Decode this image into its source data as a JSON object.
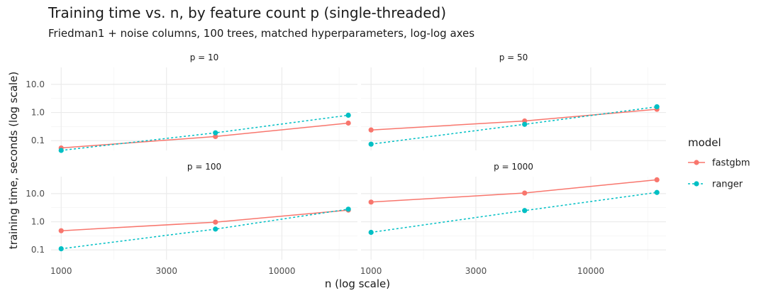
{
  "chart_data": {
    "type": "line",
    "title": "Training time vs. n, by feature count p (single-threaded)",
    "subtitle": "Friedman1 + noise columns, 100 trees, matched hyperparameters, log-log axes",
    "xlabel": "n (log scale)",
    "ylabel": "training time, seconds (log scale)",
    "x_scale": "log",
    "y_scale": "log",
    "xlim": [
      900,
      22000
    ],
    "ylim": [
      0.045,
      40
    ],
    "x_ticks": [
      1000,
      3000,
      10000
    ],
    "x_tick_labels": [
      "1000",
      "3000",
      "10000"
    ],
    "y_ticks": [
      0.1,
      1,
      10
    ],
    "y_tick_labels": [
      "0.1",
      "1.0",
      "10.0"
    ],
    "grid": true,
    "legend": {
      "title": "model",
      "position": "right",
      "entries": [
        {
          "name": "fastgbm",
          "color": "#F8766D",
          "linestyle": "solid"
        },
        {
          "name": "ranger",
          "color": "#00BFC4",
          "linestyle": "dashed"
        }
      ]
    },
    "panels": [
      {
        "label": "p = 10",
        "x": [
          1000,
          5000,
          20000
        ],
        "series": [
          {
            "name": "fastgbm",
            "values": [
              0.055,
              0.14,
              0.42
            ]
          },
          {
            "name": "ranger",
            "values": [
              0.045,
              0.19,
              0.8
            ]
          }
        ]
      },
      {
        "label": "p = 50",
        "x": [
          1000,
          5000,
          20000
        ],
        "series": [
          {
            "name": "fastgbm",
            "values": [
              0.24,
              0.5,
              1.3
            ]
          },
          {
            "name": "ranger",
            "values": [
              0.075,
              0.38,
              1.6
            ]
          }
        ]
      },
      {
        "label": "p = 100",
        "x": [
          1000,
          5000,
          20000
        ],
        "series": [
          {
            "name": "fastgbm",
            "values": [
              0.48,
              0.97,
              2.6
            ]
          },
          {
            "name": "ranger",
            "values": [
              0.11,
              0.55,
              2.8
            ]
          }
        ]
      },
      {
        "label": "p = 1000",
        "x": [
          1000,
          5000,
          20000
        ],
        "series": [
          {
            "name": "fastgbm",
            "values": [
              5.0,
              10.5,
              31
            ]
          },
          {
            "name": "ranger",
            "values": [
              0.42,
              2.5,
              11
            ]
          }
        ]
      }
    ]
  }
}
